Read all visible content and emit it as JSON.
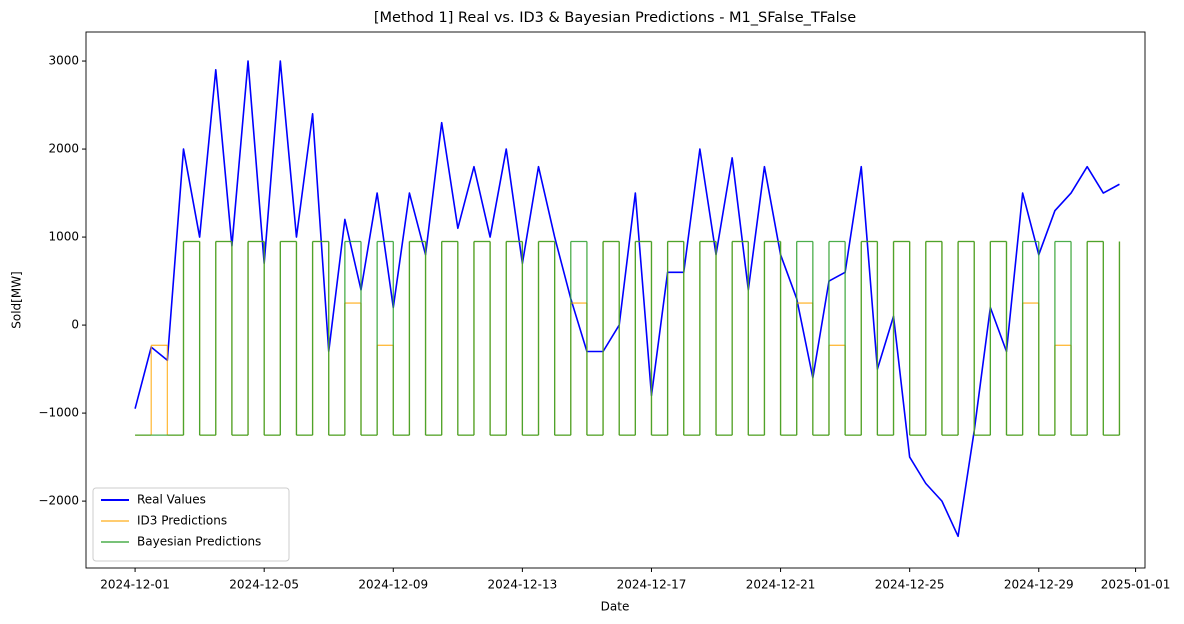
{
  "chart_data": {
    "type": "line",
    "title": "[Method 1] Real vs. ID3 & Bayesian Predictions - M1_SFalse_TFalse",
    "xlabel": "Date",
    "ylabel": "Sold[MW]",
    "x": [
      "2024-12-01T00:00",
      "2024-12-01T12:00",
      "2024-12-02T00:00",
      "2024-12-02T12:00",
      "2024-12-03T00:00",
      "2024-12-03T12:00",
      "2024-12-04T00:00",
      "2024-12-04T12:00",
      "2024-12-05T00:00",
      "2024-12-05T12:00",
      "2024-12-06T00:00",
      "2024-12-06T12:00",
      "2024-12-07T00:00",
      "2024-12-07T12:00",
      "2024-12-08T00:00",
      "2024-12-08T12:00",
      "2024-12-09T00:00",
      "2024-12-09T12:00",
      "2024-12-10T00:00",
      "2024-12-10T12:00",
      "2024-12-11T00:00",
      "2024-12-11T12:00",
      "2024-12-12T00:00",
      "2024-12-12T12:00",
      "2024-12-13T00:00",
      "2024-12-13T12:00",
      "2024-12-14T00:00",
      "2024-12-14T12:00",
      "2024-12-15T00:00",
      "2024-12-15T12:00",
      "2024-12-16T00:00",
      "2024-12-16T12:00",
      "2024-12-17T00:00",
      "2024-12-17T12:00",
      "2024-12-18T00:00",
      "2024-12-18T12:00",
      "2024-12-19T00:00",
      "2024-12-19T12:00",
      "2024-12-20T00:00",
      "2024-12-20T12:00",
      "2024-12-21T00:00",
      "2024-12-21T12:00",
      "2024-12-22T00:00",
      "2024-12-22T12:00",
      "2024-12-23T00:00",
      "2024-12-23T12:00",
      "2024-12-24T00:00",
      "2024-12-24T12:00",
      "2024-12-25T00:00",
      "2024-12-25T12:00",
      "2024-12-26T00:00",
      "2024-12-26T12:00",
      "2024-12-27T00:00",
      "2024-12-27T12:00",
      "2024-12-28T00:00",
      "2024-12-28T12:00",
      "2024-12-29T00:00",
      "2024-12-29T12:00",
      "2024-12-30T00:00",
      "2024-12-30T12:00",
      "2024-12-31T00:00",
      "2024-12-31T12:00"
    ],
    "series": [
      {
        "name": "Real Values",
        "color": "#0000ff",
        "alpha": 1,
        "width": 1.6,
        "values": [
          -950,
          -250,
          -400,
          2000,
          1000,
          2900,
          900,
          3000,
          700,
          3000,
          1000,
          2400,
          -300,
          1200,
          400,
          1500,
          200,
          1500,
          800,
          2300,
          1100,
          1800,
          1000,
          2000,
          700,
          1800,
          1000,
          300,
          -300,
          -300,
          0,
          1500,
          -800,
          600,
          600,
          2000,
          800,
          1900,
          400,
          1800,
          800,
          300,
          -600,
          500,
          600,
          1800,
          -500,
          100,
          -1500,
          -1800,
          -2000,
          -2400,
          -1200,
          200,
          -300,
          1500,
          800,
          1300,
          1500,
          1800,
          1500,
          1600
        ]
      },
      {
        "name": "ID3 Predictions",
        "color": "#ffa500",
        "alpha": 0.75,
        "width": 1.3,
        "step": "post",
        "values": [
          -1250,
          -230,
          -1250,
          950,
          -1250,
          950,
          -1250,
          950,
          -1250,
          950,
          -1250,
          950,
          -1250,
          250,
          -1250,
          -230,
          -1250,
          950,
          -1250,
          950,
          -1250,
          950,
          -1250,
          950,
          -1250,
          950,
          -1250,
          250,
          -1250,
          950,
          -1250,
          950,
          -1250,
          950,
          -1250,
          950,
          -1250,
          950,
          -1250,
          950,
          -1250,
          250,
          -1250,
          -230,
          -1250,
          950,
          -1250,
          950,
          -1250,
          950,
          -1250,
          950,
          -1250,
          950,
          -1250,
          250,
          -1250,
          -230,
          -1250,
          950,
          -1250,
          950
        ]
      },
      {
        "name": "Bayesian Predictions",
        "color": "#2ca02c",
        "alpha": 0.85,
        "width": 1.3,
        "step": "post",
        "values": [
          -1250,
          -1250,
          -1250,
          950,
          -1250,
          950,
          -1250,
          950,
          -1250,
          950,
          -1250,
          950,
          -1250,
          950,
          -1250,
          950,
          -1250,
          950,
          -1250,
          950,
          -1250,
          950,
          -1250,
          950,
          -1250,
          950,
          -1250,
          950,
          -1250,
          950,
          -1250,
          950,
          -1250,
          950,
          -1250,
          950,
          -1250,
          950,
          -1250,
          950,
          -1250,
          950,
          -1250,
          950,
          -1250,
          950,
          -1250,
          950,
          -1250,
          950,
          -1250,
          950,
          -1250,
          950,
          -1250,
          950,
          -1250,
          950,
          -1250,
          950,
          -1250,
          950
        ]
      }
    ],
    "xlim": [
      "2024-11-29T11:30",
      "2025-01-01T07:00"
    ],
    "xticks": [
      "2024-12-01",
      "2024-12-05",
      "2024-12-09",
      "2024-12-13",
      "2024-12-17",
      "2024-12-21",
      "2024-12-25",
      "2024-12-29",
      "2025-01-01"
    ],
    "ylim": [
      -2760,
      3330
    ],
    "yticks": [
      {
        "value": -2000,
        "label": "−2000"
      },
      {
        "value": -1000,
        "label": "−1000"
      },
      0,
      1000,
      2000,
      3000
    ],
    "legend": "lower left"
  }
}
